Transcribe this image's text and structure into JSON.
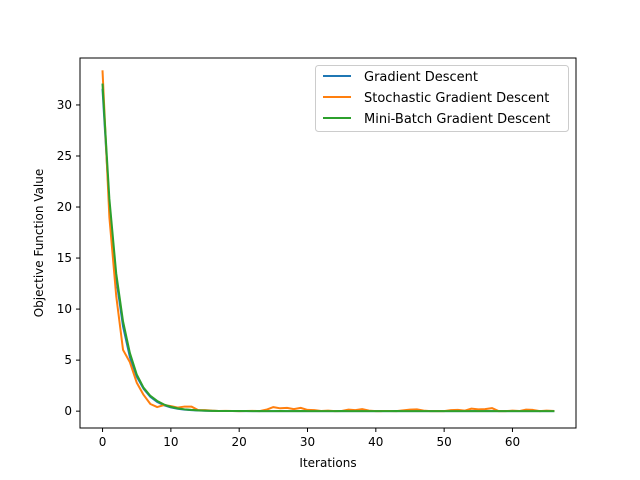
{
  "chart_data": {
    "type": "line",
    "title": "",
    "xlabel": "Iterations",
    "ylabel": "Objective Function Value",
    "xlim": [
      -3.3,
      69.3
    ],
    "ylim": [
      -1.65,
      34.6
    ],
    "xticks": [
      0,
      10,
      20,
      30,
      40,
      50,
      60
    ],
    "yticks": [
      0,
      5,
      10,
      15,
      20,
      25,
      30
    ],
    "grid": false,
    "legend_position": "top-right",
    "series": [
      {
        "name": "Gradient Descent",
        "color": "#1f77b4",
        "x": [
          0,
          1,
          2,
          3,
          4,
          5,
          6,
          7,
          8,
          9,
          10,
          11,
          12,
          13,
          14,
          15,
          16,
          17,
          18,
          19,
          20,
          21,
          22,
          23,
          24,
          25,
          26,
          27,
          28,
          29,
          30,
          31,
          32,
          33,
          34,
          35,
          36,
          37,
          38,
          39,
          40,
          41,
          42,
          43,
          44,
          45,
          46,
          47,
          48,
          49,
          50,
          51,
          52,
          53,
          54,
          55,
          56,
          57,
          58,
          59,
          60,
          61,
          62,
          63,
          64,
          65,
          66
        ],
        "y": [
          31.5,
          20.2,
          13.0,
          8.3,
          5.3,
          3.4,
          2.2,
          1.4,
          0.9,
          0.58,
          0.37,
          0.24,
          0.15,
          0.1,
          0.06,
          0.04,
          0.03,
          0.02,
          0.01,
          0.01,
          0.0,
          0.0,
          0.0,
          0.0,
          0.0,
          0.0,
          0.0,
          0.0,
          0.0,
          0.0,
          0.0,
          0.0,
          0.0,
          0.0,
          0.0,
          0.0,
          0.0,
          0.0,
          0.0,
          0.0,
          0.0,
          0.0,
          0.0,
          0.0,
          0.0,
          0.0,
          0.0,
          0.0,
          0.0,
          0.0,
          0.0,
          0.0,
          0.0,
          0.0,
          0.0,
          0.0,
          0.0,
          0.0,
          0.0,
          0.0,
          0.0,
          0.0,
          0.0,
          0.0,
          0.0,
          0.0,
          0.0
        ]
      },
      {
        "name": "Stochastic Gradient Descent",
        "color": "#ff7f0e",
        "x": [
          0,
          1,
          2,
          3,
          4,
          5,
          6,
          7,
          8,
          9,
          10,
          11,
          12,
          13,
          14,
          15,
          16,
          17,
          18,
          19,
          20,
          21,
          22,
          23,
          24,
          25,
          26,
          27,
          28,
          29,
          30,
          31,
          32,
          33,
          34,
          35,
          36,
          37,
          38,
          39,
          40,
          41,
          42,
          43,
          44,
          45,
          46,
          47,
          48,
          49,
          50,
          51,
          52,
          53,
          54,
          55,
          56,
          57,
          58,
          59,
          60,
          61,
          62,
          63,
          64,
          65,
          66
        ],
        "y": [
          33.3,
          19.0,
          11.3,
          6.0,
          4.8,
          2.8,
          1.6,
          0.7,
          0.4,
          0.6,
          0.5,
          0.35,
          0.45,
          0.45,
          0.1,
          0.1,
          0.05,
          0.02,
          0.03,
          0.02,
          0.0,
          0.01,
          0.03,
          0.0,
          0.15,
          0.4,
          0.28,
          0.32,
          0.2,
          0.32,
          0.12,
          0.1,
          0.02,
          0.05,
          0.0,
          0.02,
          0.15,
          0.1,
          0.2,
          0.05,
          0.0,
          0.01,
          0.02,
          0.0,
          0.08,
          0.15,
          0.18,
          0.05,
          0.0,
          0.02,
          0.0,
          0.1,
          0.12,
          0.05,
          0.25,
          0.18,
          0.2,
          0.3,
          0.0,
          0.0,
          0.05,
          0.01,
          0.15,
          0.12,
          0.0,
          0.05,
          0.02
        ]
      },
      {
        "name": "Mini-Batch Gradient Descent",
        "color": "#2ca02c",
        "x": [
          0,
          1,
          2,
          3,
          4,
          5,
          6,
          7,
          8,
          9,
          10,
          11,
          12,
          13,
          14,
          15,
          16,
          17,
          18,
          19,
          20,
          21,
          22,
          23,
          24,
          25,
          26,
          27,
          28,
          29,
          30,
          31,
          32,
          33,
          34,
          35,
          36,
          37,
          38,
          39,
          40,
          41,
          42,
          43,
          44,
          45,
          46,
          47,
          48,
          49,
          50,
          51,
          52,
          53,
          54,
          55,
          56,
          57,
          58,
          59,
          60,
          61,
          62,
          63,
          64,
          65,
          66
        ],
        "y": [
          32.0,
          20.8,
          13.5,
          8.8,
          5.7,
          3.6,
          2.3,
          1.5,
          1.0,
          0.65,
          0.42,
          0.27,
          0.18,
          0.12,
          0.08,
          0.05,
          0.03,
          0.02,
          0.02,
          0.01,
          0.01,
          0.01,
          0.0,
          0.01,
          0.0,
          0.0,
          0.01,
          0.0,
          0.0,
          0.01,
          0.0,
          0.0,
          0.0,
          0.0,
          0.0,
          0.01,
          0.0,
          0.0,
          0.0,
          0.0,
          0.0,
          0.0,
          0.0,
          0.01,
          0.0,
          0.0,
          0.0,
          0.0,
          0.0,
          0.0,
          0.0,
          0.0,
          0.0,
          0.0,
          0.0,
          0.0,
          0.0,
          0.0,
          0.0,
          0.0,
          0.0,
          0.0,
          0.0,
          0.0,
          0.0,
          0.0,
          0.0
        ]
      }
    ]
  }
}
